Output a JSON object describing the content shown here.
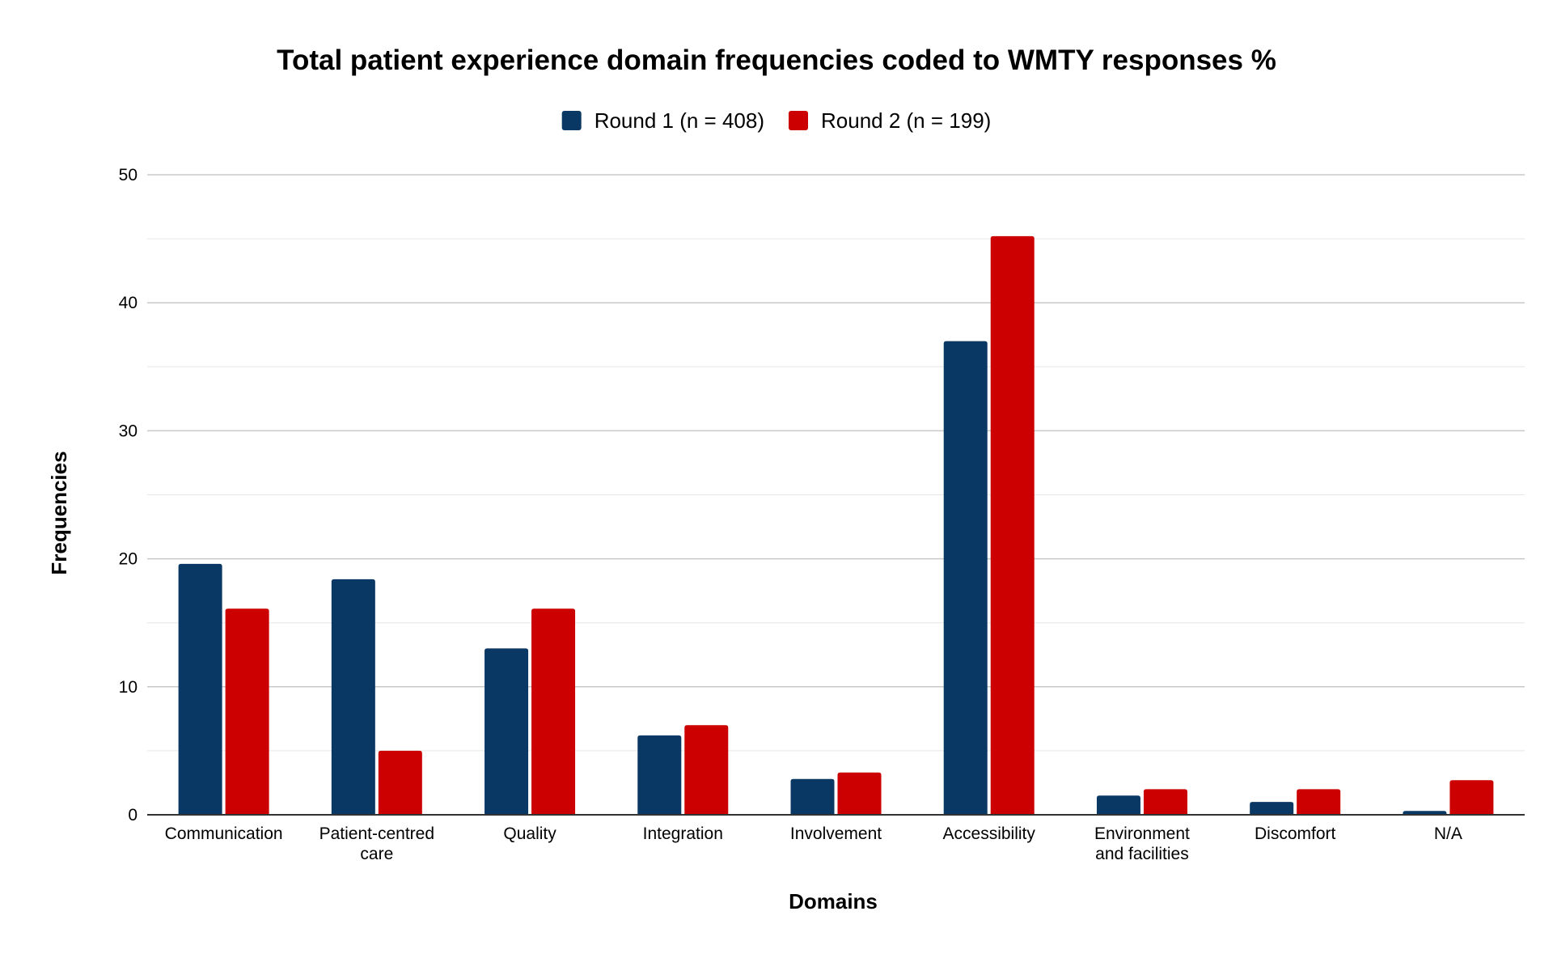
{
  "chart_data": {
    "type": "bar",
    "title": "Total patient experience domain frequencies coded to WMTY responses %",
    "xlabel": "Domains",
    "ylabel": "Frequencies",
    "ylim": [
      0,
      50
    ],
    "yticks": [
      0,
      10,
      20,
      30,
      40,
      50
    ],
    "grid": true,
    "legend_position": "top-center",
    "categories": [
      [
        "Communication"
      ],
      [
        "Patient-centred",
        "care"
      ],
      [
        "Quality"
      ],
      [
        "Integration"
      ],
      [
        "Involvement"
      ],
      [
        "Accessibility"
      ],
      [
        "Environment",
        "and facilities"
      ],
      [
        "Discomfort"
      ],
      [
        "N/A"
      ]
    ],
    "series": [
      {
        "name": "Round 1 (n = 408)",
        "color": "#0a3864",
        "values": [
          19.6,
          18.4,
          13.0,
          6.2,
          2.8,
          37.0,
          1.5,
          1.0,
          0.3
        ]
      },
      {
        "name": "Round 2 (n = 199)",
        "color": "#cc0000",
        "values": [
          16.1,
          5.0,
          16.1,
          7.0,
          3.3,
          45.2,
          2.0,
          2.0,
          2.7
        ]
      }
    ]
  }
}
